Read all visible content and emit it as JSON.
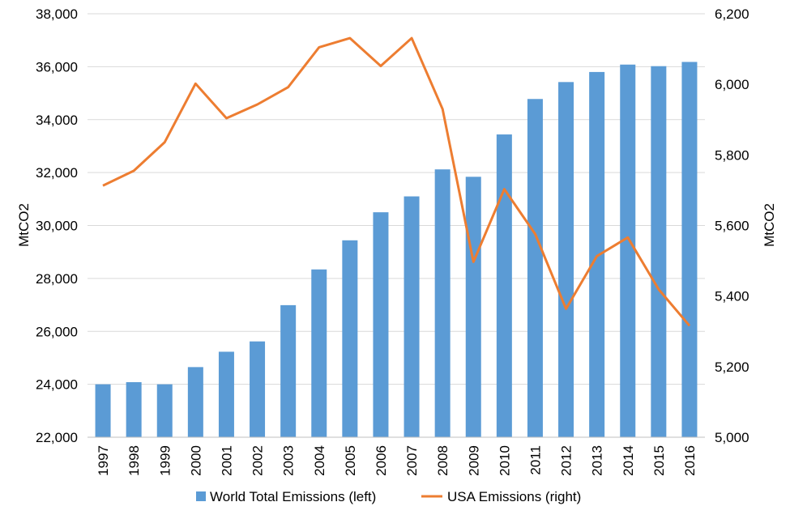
{
  "chart_data": {
    "type": "bar",
    "title": "",
    "xlabel": "",
    "ylabel": "MtCO2",
    "y2label": "MtCO2",
    "categories": [
      "1997",
      "1998",
      "1999",
      "2000",
      "2001",
      "2002",
      "2003",
      "2004",
      "2005",
      "2006",
      "2007",
      "2008",
      "2009",
      "2010",
      "2011",
      "2012",
      "2013",
      "2014",
      "2015",
      "2016"
    ],
    "ylim": [
      22000,
      38000
    ],
    "y2lim": [
      5000,
      6200
    ],
    "y_ticks": [
      "22,000",
      "24,000",
      "26,000",
      "28,000",
      "30,000",
      "32,000",
      "34,000",
      "36,000",
      "38,000"
    ],
    "y2_ticks": [
      "5,000",
      "5,200",
      "5,400",
      "5,600",
      "5,800",
      "6,000",
      "6,200"
    ],
    "grid": true,
    "legend_position": "bottom",
    "series": [
      {
        "name": "World Total Emissions (left)",
        "type": "bar",
        "axis": "left",
        "color": "#5B9BD5",
        "values": [
          24000,
          24080,
          24000,
          24650,
          25230,
          25620,
          26990,
          28340,
          29440,
          30500,
          31100,
          32120,
          31840,
          33440,
          34780,
          35420,
          35800,
          36080,
          36020,
          36180
        ]
      },
      {
        "name": "USA Emissions (right)",
        "type": "line",
        "axis": "right",
        "color": "#ED7D31",
        "values": [
          5713,
          5755,
          5836,
          6002,
          5904,
          5943,
          5992,
          6105,
          6131,
          6052,
          6131,
          5930,
          5497,
          5703,
          5576,
          5364,
          5513,
          5566,
          5419,
          5316
        ]
      }
    ]
  }
}
